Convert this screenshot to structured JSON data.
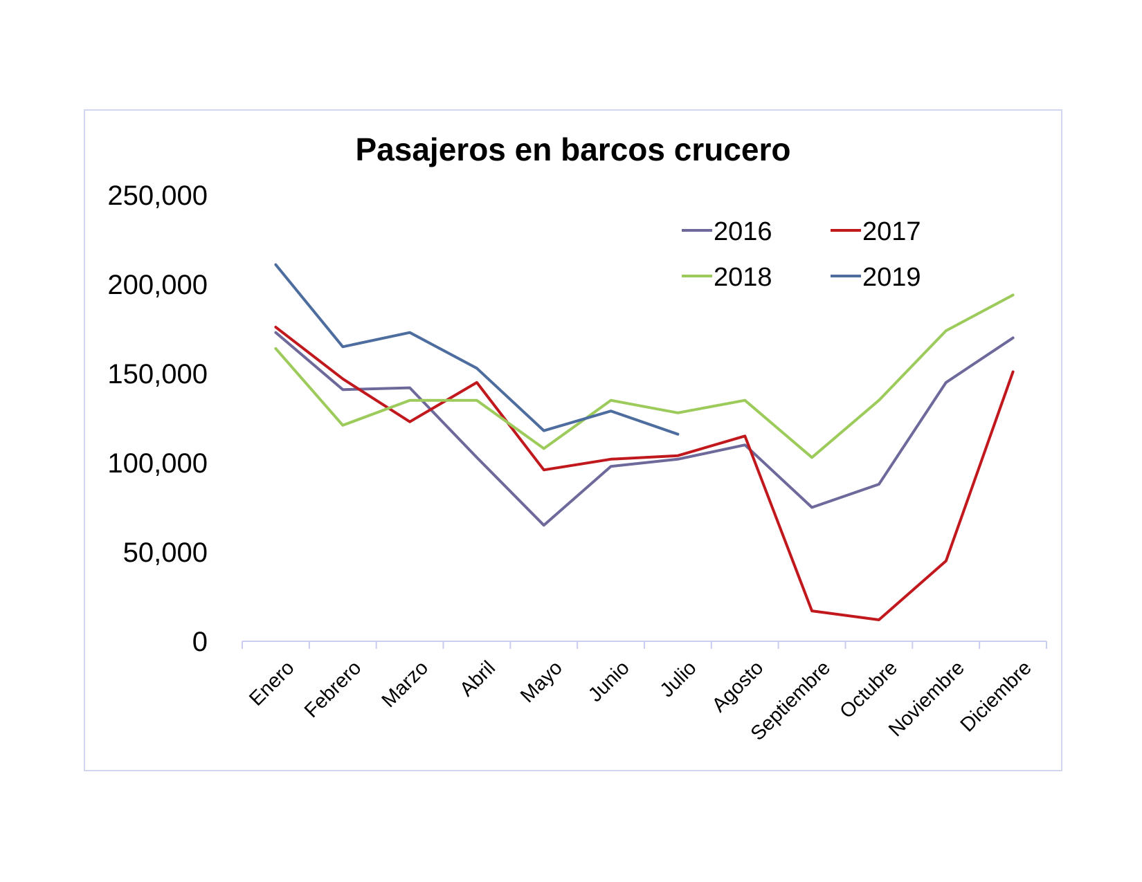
{
  "colors": {
    "2016": "#6d6a9b",
    "2017": "#c0181c",
    "2018": "#9ccb5b",
    "2019": "#4e6d9f",
    "axis": "#c9cdef"
  },
  "chart_data": {
    "type": "line",
    "title": "Pasajeros en barcos crucero",
    "xlabel": "",
    "ylabel": "",
    "ylim": [
      0,
      250000
    ],
    "yticks": [
      0,
      50000,
      100000,
      150000,
      200000,
      250000
    ],
    "ytick_labels": [
      "0",
      "50,000",
      "100,000",
      "150,000",
      "200,000",
      "250,000"
    ],
    "grid": false,
    "legend_position": "top-right",
    "categories": [
      "Enero",
      "Febrero",
      "Marzo",
      "Abril",
      "Mayo",
      "Junio",
      "Julio",
      "Agosto",
      "Septiembre",
      "Octubre",
      "Noviembre",
      "Diciembre"
    ],
    "series": [
      {
        "name": "2016",
        "color": "#6d6a9b",
        "values": [
          173000,
          141000,
          142000,
          103000,
          65000,
          98000,
          102000,
          110000,
          75000,
          88000,
          145000,
          170000
        ]
      },
      {
        "name": "2017",
        "color": "#c0181c",
        "values": [
          176000,
          147000,
          123000,
          145000,
          96000,
          102000,
          104000,
          115000,
          17000,
          12000,
          45000,
          151000
        ]
      },
      {
        "name": "2018",
        "color": "#9ccb5b",
        "values": [
          164000,
          121000,
          135000,
          135000,
          108000,
          135000,
          128000,
          135000,
          103000,
          135000,
          174000,
          194000
        ]
      },
      {
        "name": "2019",
        "color": "#4e6d9f",
        "values": [
          211000,
          165000,
          173000,
          153000,
          118000,
          129000,
          116000,
          null,
          null,
          null,
          null,
          null
        ]
      }
    ]
  }
}
